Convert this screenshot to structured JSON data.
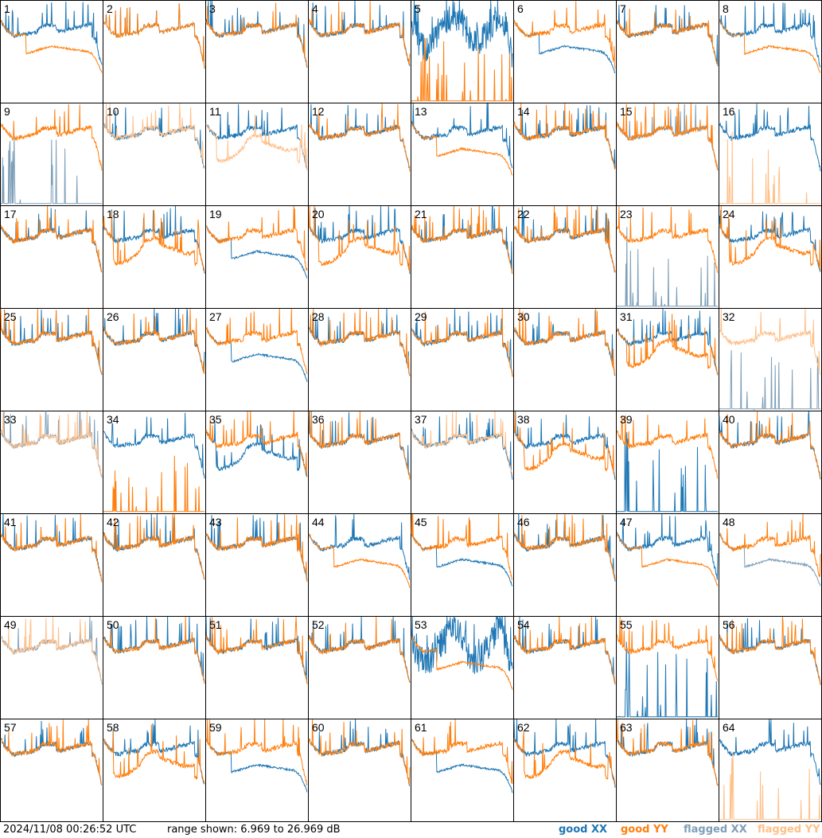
{
  "footer": {
    "timestamp": "2024/11/08 00:26:52 UTC",
    "range_text": "range shown: 6.969 to 26.969 dB"
  },
  "legend": {
    "good_xx": "good XX",
    "good_yy": "good YY",
    "flagged_xx": "flagged XX",
    "flagged_yy": "flagged YY"
  },
  "colors": {
    "good_xx": "#1f77b4",
    "good_yy": "#ff7f0e",
    "flagged_xx": "#7f9fb8",
    "flagged_yy": "#ffc08a"
  },
  "chart_data": {
    "type": "line",
    "layout": "8x8 grid of small-multiple spectra",
    "ylim_db": [
      6.969,
      26.969
    ],
    "grid": false,
    "legend_position": "bottom-right",
    "series_names": [
      "good XX",
      "good YY",
      "flagged XX",
      "flagged YY"
    ],
    "panels": [
      {
        "label": "1",
        "xx": "good",
        "yy": "good",
        "xx_shape": "normal",
        "yy_shape": "rolloff"
      },
      {
        "label": "2",
        "xx": "good",
        "yy": "good",
        "xx_shape": "normal",
        "yy_shape": "normal"
      },
      {
        "label": "3",
        "xx": "good",
        "yy": "good",
        "xx_shape": "normal",
        "yy_shape": "normal"
      },
      {
        "label": "4",
        "xx": "good",
        "yy": "good",
        "xx_shape": "normal",
        "yy_shape": "normal"
      },
      {
        "label": "5",
        "xx": "good",
        "yy": "good",
        "xx_shape": "noisy",
        "yy_shape": "spikes"
      },
      {
        "label": "6",
        "xx": "good",
        "yy": "good",
        "xx_shape": "rolloff",
        "yy_shape": "normal"
      },
      {
        "label": "7",
        "xx": "good",
        "yy": "good",
        "xx_shape": "normal",
        "yy_shape": "normal"
      },
      {
        "label": "8",
        "xx": "good",
        "yy": "good",
        "xx_shape": "normal",
        "yy_shape": "rolloff"
      },
      {
        "label": "9",
        "xx": "flagged",
        "yy": "good",
        "xx_shape": "spikes",
        "yy_shape": "normal"
      },
      {
        "label": "10",
        "xx": "good",
        "yy": "flagged",
        "xx_shape": "normal",
        "yy_shape": "normal"
      },
      {
        "label": "11",
        "xx": "good",
        "yy": "flagged",
        "xx_shape": "normal",
        "yy_shape": "low"
      },
      {
        "label": "12",
        "xx": "good",
        "yy": "good",
        "xx_shape": "normal",
        "yy_shape": "normal"
      },
      {
        "label": "13",
        "xx": "good",
        "yy": "good",
        "xx_shape": "normal",
        "yy_shape": "rolloff"
      },
      {
        "label": "14",
        "xx": "good",
        "yy": "good",
        "xx_shape": "normal",
        "yy_shape": "normal"
      },
      {
        "label": "15",
        "xx": "flagged",
        "yy": "good",
        "xx_shape": "normal",
        "yy_shape": "normal"
      },
      {
        "label": "16",
        "xx": "good",
        "yy": "flagged",
        "xx_shape": "normal",
        "yy_shape": "spikes"
      },
      {
        "label": "17",
        "xx": "good",
        "yy": "good",
        "xx_shape": "normal",
        "yy_shape": "normal"
      },
      {
        "label": "18",
        "xx": "good",
        "yy": "good",
        "xx_shape": "normal",
        "yy_shape": "low"
      },
      {
        "label": "19",
        "xx": "good",
        "yy": "good",
        "xx_shape": "rolloff",
        "yy_shape": "normal"
      },
      {
        "label": "20",
        "xx": "good",
        "yy": "good",
        "xx_shape": "normal",
        "yy_shape": "low"
      },
      {
        "label": "21",
        "xx": "good",
        "yy": "good",
        "xx_shape": "normal",
        "yy_shape": "normal"
      },
      {
        "label": "22",
        "xx": "good",
        "yy": "good",
        "xx_shape": "normal",
        "yy_shape": "normal"
      },
      {
        "label": "23",
        "xx": "flagged",
        "yy": "good",
        "xx_shape": "spikes",
        "yy_shape": "normal"
      },
      {
        "label": "24",
        "xx": "good",
        "yy": "good",
        "xx_shape": "normal",
        "yy_shape": "low"
      },
      {
        "label": "25",
        "xx": "good",
        "yy": "good",
        "xx_shape": "normal",
        "yy_shape": "normal"
      },
      {
        "label": "26",
        "xx": "good",
        "yy": "good",
        "xx_shape": "normal",
        "yy_shape": "normal"
      },
      {
        "label": "27",
        "xx": "good",
        "yy": "good",
        "xx_shape": "rolloff",
        "yy_shape": "normal"
      },
      {
        "label": "28",
        "xx": "good",
        "yy": "good",
        "xx_shape": "normal",
        "yy_shape": "normal"
      },
      {
        "label": "29",
        "xx": "good",
        "yy": "good",
        "xx_shape": "normal",
        "yy_shape": "normal"
      },
      {
        "label": "30",
        "xx": "good",
        "yy": "good",
        "xx_shape": "normal",
        "yy_shape": "normal"
      },
      {
        "label": "31",
        "xx": "good",
        "yy": "good",
        "xx_shape": "normal",
        "yy_shape": "low"
      },
      {
        "label": "32",
        "xx": "flagged",
        "yy": "flagged",
        "xx_shape": "spikes",
        "yy_shape": "normal"
      },
      {
        "label": "33",
        "xx": "flagged",
        "yy": "flagged",
        "xx_shape": "normal",
        "yy_shape": "normal"
      },
      {
        "label": "34",
        "xx": "good",
        "yy": "good",
        "xx_shape": "normal",
        "yy_shape": "spikes"
      },
      {
        "label": "35",
        "xx": "good",
        "yy": "good",
        "xx_shape": "low",
        "yy_shape": "normal"
      },
      {
        "label": "36",
        "xx": "good",
        "yy": "good",
        "xx_shape": "normal",
        "yy_shape": "normal"
      },
      {
        "label": "37",
        "xx": "good",
        "yy": "flagged",
        "xx_shape": "normal",
        "yy_shape": "normal"
      },
      {
        "label": "38",
        "xx": "good",
        "yy": "good",
        "xx_shape": "normal",
        "yy_shape": "low"
      },
      {
        "label": "39",
        "xx": "good",
        "yy": "good",
        "xx_shape": "spikes",
        "yy_shape": "normal"
      },
      {
        "label": "40",
        "xx": "good",
        "yy": "good",
        "xx_shape": "normal",
        "yy_shape": "normal"
      },
      {
        "label": "41",
        "xx": "good",
        "yy": "good",
        "xx_shape": "normal",
        "yy_shape": "normal"
      },
      {
        "label": "42",
        "xx": "good",
        "yy": "good",
        "xx_shape": "normal",
        "yy_shape": "normal"
      },
      {
        "label": "43",
        "xx": "good",
        "yy": "good",
        "xx_shape": "normal",
        "yy_shape": "normal"
      },
      {
        "label": "44",
        "xx": "good",
        "yy": "good",
        "xx_shape": "normal",
        "yy_shape": "rolloff"
      },
      {
        "label": "45",
        "xx": "good",
        "yy": "good",
        "xx_shape": "rolloff",
        "yy_shape": "normal"
      },
      {
        "label": "46",
        "xx": "good",
        "yy": "good",
        "xx_shape": "normal",
        "yy_shape": "normal"
      },
      {
        "label": "47",
        "xx": "good",
        "yy": "good",
        "xx_shape": "normal",
        "yy_shape": "rolloff"
      },
      {
        "label": "48",
        "xx": "flagged",
        "yy": "good",
        "xx_shape": "rolloff",
        "yy_shape": "normal"
      },
      {
        "label": "49",
        "xx": "flagged",
        "yy": "flagged",
        "xx_shape": "normal",
        "yy_shape": "normal"
      },
      {
        "label": "50",
        "xx": "good",
        "yy": "good",
        "xx_shape": "normal",
        "yy_shape": "normal"
      },
      {
        "label": "51",
        "xx": "good",
        "yy": "good",
        "xx_shape": "normal",
        "yy_shape": "normal"
      },
      {
        "label": "52",
        "xx": "good",
        "yy": "good",
        "xx_shape": "normal",
        "yy_shape": "normal"
      },
      {
        "label": "53",
        "xx": "good",
        "yy": "good",
        "xx_shape": "noisy",
        "yy_shape": "rolloff"
      },
      {
        "label": "54",
        "xx": "good",
        "yy": "good",
        "xx_shape": "normal",
        "yy_shape": "normal"
      },
      {
        "label": "55",
        "xx": "good",
        "yy": "good",
        "xx_shape": "spikes",
        "yy_shape": "normal"
      },
      {
        "label": "56",
        "xx": "good",
        "yy": "good",
        "xx_shape": "normal",
        "yy_shape": "normal"
      },
      {
        "label": "57",
        "xx": "good",
        "yy": "good",
        "xx_shape": "normal",
        "yy_shape": "normal"
      },
      {
        "label": "58",
        "xx": "good",
        "yy": "good",
        "xx_shape": "normal",
        "yy_shape": "low"
      },
      {
        "label": "59",
        "xx": "good",
        "yy": "good",
        "xx_shape": "rolloff",
        "yy_shape": "normal"
      },
      {
        "label": "60",
        "xx": "good",
        "yy": "good",
        "xx_shape": "normal",
        "yy_shape": "normal"
      },
      {
        "label": "61",
        "xx": "good",
        "yy": "good",
        "xx_shape": "rolloff",
        "yy_shape": "normal"
      },
      {
        "label": "62",
        "xx": "good",
        "yy": "good",
        "xx_shape": "normal",
        "yy_shape": "low"
      },
      {
        "label": "63",
        "xx": "good",
        "yy": "good",
        "xx_shape": "normal",
        "yy_shape": "normal"
      },
      {
        "label": "64",
        "xx": "good",
        "yy": "flagged",
        "xx_shape": "normal",
        "yy_shape": "spikes"
      }
    ]
  }
}
